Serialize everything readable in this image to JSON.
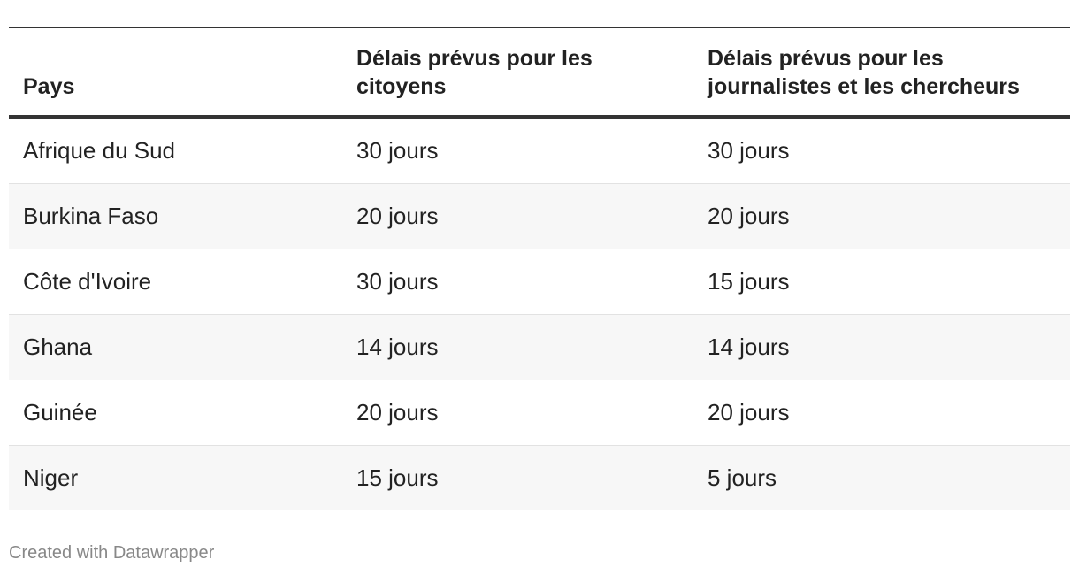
{
  "table": {
    "header": [
      "Pays",
      "Délais prévus pour les citoyens",
      "Délais prévus pour les journalistes et les chercheurs"
    ],
    "rows": [
      [
        "Afrique du Sud",
        "30 jours",
        "30 jours"
      ],
      [
        "Burkina Faso",
        "20 jours",
        "20 jours"
      ],
      [
        "Côte d'Ivoire",
        "30 jours",
        "15 jours"
      ],
      [
        "Ghana",
        "14 jours",
        "14 jours"
      ],
      [
        "Guinée",
        "20 jours",
        "20 jours"
      ],
      [
        "Niger",
        "15 jours",
        "5 jours"
      ]
    ]
  },
  "footer": "Created with Datawrapper"
}
